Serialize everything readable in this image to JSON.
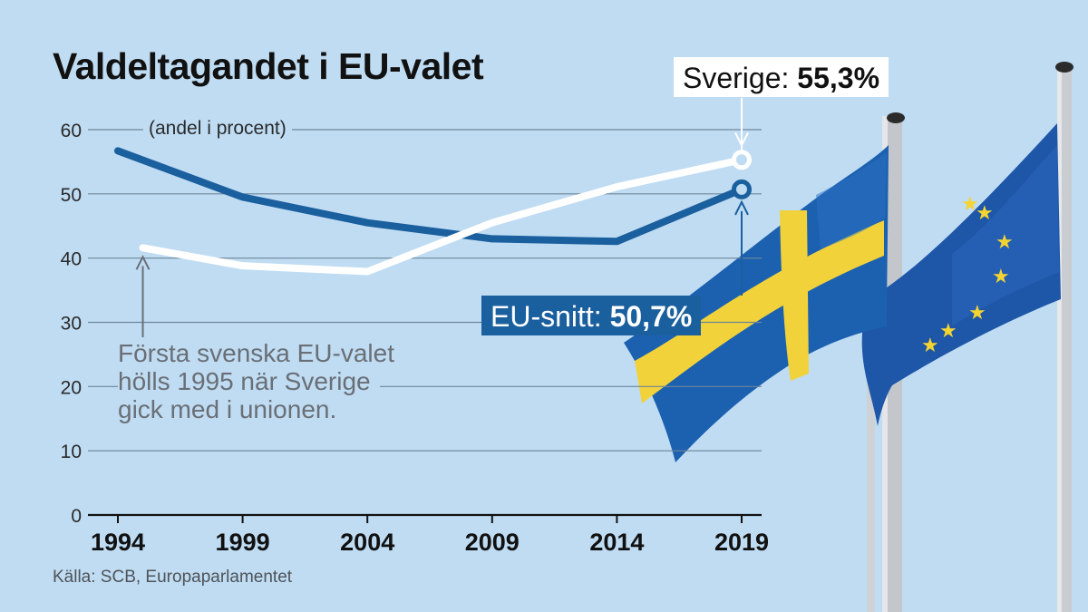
{
  "colors": {
    "background": "#bfdcf3",
    "sverige_line": "#ffffff",
    "eu_line": "#1a5f9e",
    "grid": "#6f8597",
    "annotation_arrow": "#6a6f76"
  },
  "labels": {
    "title": "Valdeltagandet i EU-valet",
    "subtitle": "(andel i procent)",
    "sverige_name": "Sverige: ",
    "sverige_value": "55,3%",
    "eu_name": "EU-snitt: ",
    "eu_value": "50,7%",
    "note_lines": [
      "Första svenska EU-valet",
      "hölls 1995 när Sverige",
      "gick med i unionen."
    ],
    "source": "Källa: SCB, Europaparlamentet"
  },
  "background_image": {
    "icons": [
      "sweden-flag-icon",
      "eu-flag-icon",
      "flagpole-icon"
    ]
  },
  "chart_data": {
    "type": "line",
    "title": "Valdeltagandet i EU-valet",
    "subtitle": "(andel i procent)",
    "ylim": [
      0,
      60
    ],
    "yticks": [
      0,
      10,
      20,
      30,
      40,
      50,
      60
    ],
    "grid": true,
    "x_tick_labels": [
      "1994",
      "1999",
      "2004",
      "2009",
      "2014",
      "2019"
    ],
    "xlim": [
      1994,
      2019
    ],
    "series": [
      {
        "name": "EU-snitt",
        "color": "#1a5f9e",
        "x": [
          1994,
          1999,
          2004,
          2009,
          2014,
          2019
        ],
        "values": [
          56.7,
          49.5,
          45.5,
          43.0,
          42.6,
          50.7
        ]
      },
      {
        "name": "Sverige",
        "color": "#ffffff",
        "x": [
          1995,
          1999,
          2004,
          2009,
          2014,
          2019
        ],
        "values": [
          41.6,
          38.8,
          37.9,
          45.5,
          51.1,
          55.3
        ]
      }
    ]
  }
}
